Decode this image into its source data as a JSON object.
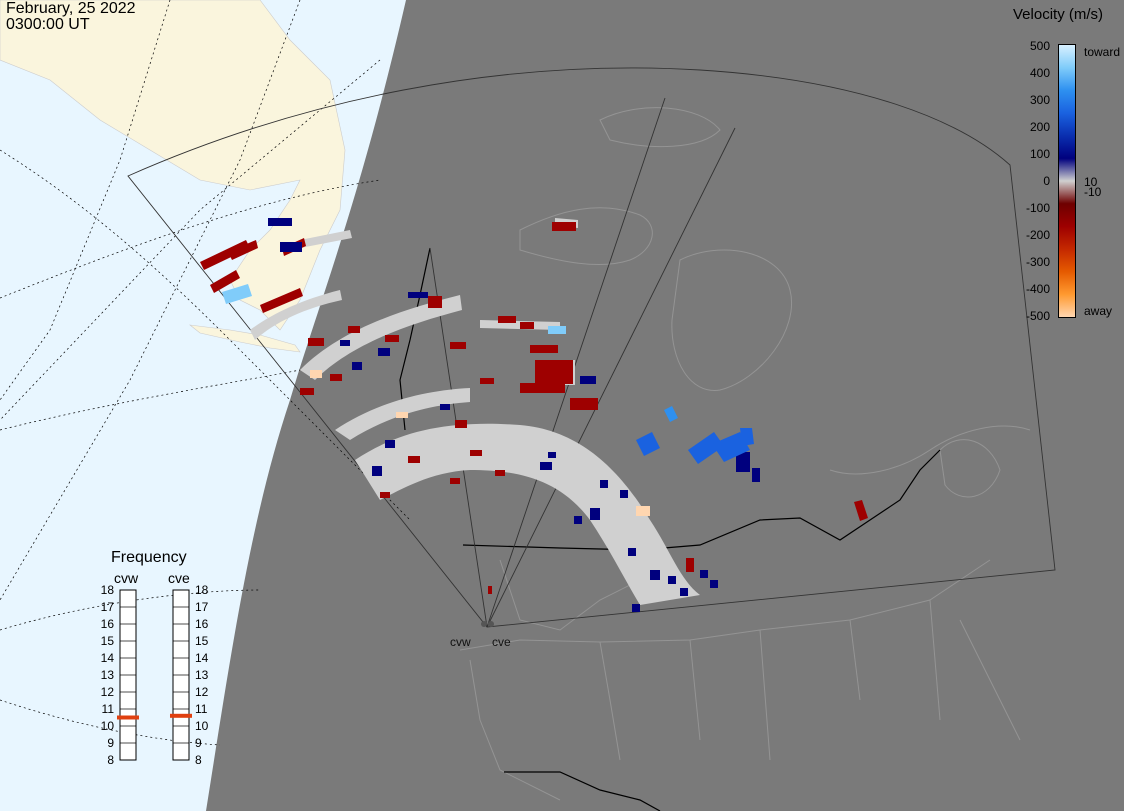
{
  "header": {
    "date": "February, 25 2022",
    "time": "0300:00 UT"
  },
  "legend": {
    "title": "Velocity (m/s)",
    "ticks": [
      "500",
      "400",
      "300",
      "200",
      "100",
      "0",
      "-100",
      "-200",
      "-300",
      "-400",
      "-500"
    ],
    "near_zero_pos": "10",
    "near_zero_neg": "-10",
    "top_label": "toward",
    "bottom_label": "away",
    "colors": [
      "#ffd6b0",
      "#ff9a30",
      "#e55a00",
      "#c42800",
      "#9e0000",
      "#6e0000",
      "#d0d0d0",
      "#00007e",
      "#0a2fb0",
      "#1a62e0",
      "#2e90f0",
      "#80ccfa",
      "#d8f0ff"
    ]
  },
  "frequency": {
    "title": "Frequency",
    "radars": [
      "cvw",
      "cve"
    ],
    "scale": [
      "18",
      "17",
      "16",
      "15",
      "14",
      "13",
      "12",
      "11",
      "10",
      "9",
      "8"
    ],
    "cvw_mhz": 10.5,
    "cve_mhz": 10.6
  },
  "sites": {
    "west": "cvw",
    "east": "cve"
  },
  "colors": {
    "night": "#7a7a7a",
    "ocean_day": "#e8f6ff",
    "land_day": "#faf5dd",
    "boundary": "#000000",
    "ground_scatter": "#d0d0d0"
  }
}
